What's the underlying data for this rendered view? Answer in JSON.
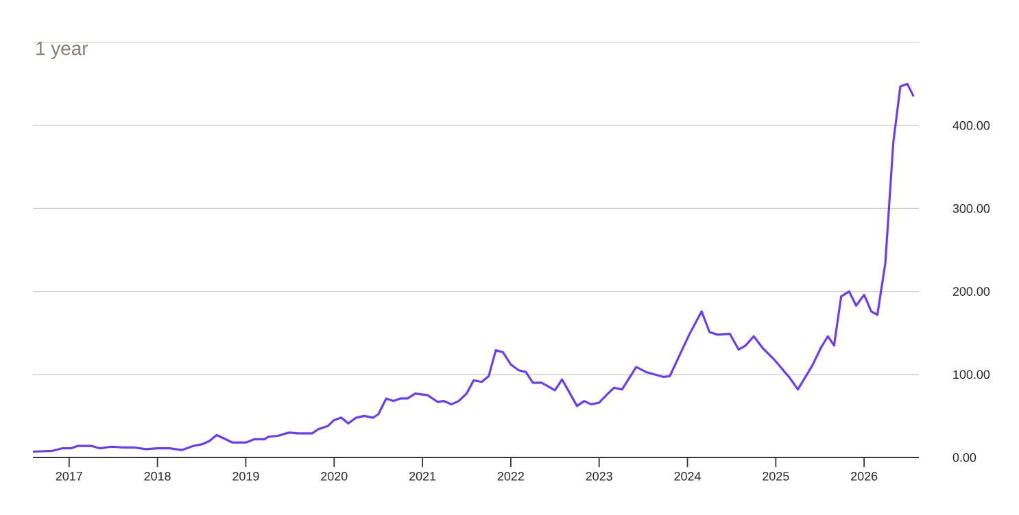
{
  "chart_data": {
    "type": "line",
    "title": "1 year",
    "grid": "y",
    "xlim": [
      2016.59,
      2026.62
    ],
    "xticks": [
      2017,
      2018,
      2019,
      2020,
      2021,
      2022,
      2023,
      2024,
      2025,
      2026
    ],
    "ylim": [
      0,
      500
    ],
    "yticks": [
      {
        "value": 0,
        "label": "0.00"
      },
      {
        "value": 100,
        "label": "100.00"
      },
      {
        "value": 200,
        "label": "200.00"
      },
      {
        "value": 300,
        "label": "300.00"
      },
      {
        "value": 400,
        "label": "400.00"
      },
      {
        "value": 500,
        "label": null
      }
    ],
    "series": [
      {
        "color": "#6b3cf5",
        "x": [
          2016.59,
          2016.81,
          2016.92,
          2017.02,
          2017.1,
          2017.25,
          2017.35,
          2017.48,
          2017.61,
          2017.74,
          2017.87,
          2018.0,
          2018.14,
          2018.28,
          2018.41,
          2018.51,
          2018.59,
          2018.67,
          2018.85,
          2019.0,
          2019.1,
          2019.21,
          2019.26,
          2019.36,
          2019.49,
          2019.59,
          2019.75,
          2019.82,
          2019.93,
          2020.0,
          2020.08,
          2020.16,
          2020.25,
          2020.34,
          2020.44,
          2020.5,
          2020.59,
          2020.67,
          2020.75,
          2020.83,
          2020.92,
          2021.06,
          2021.17,
          2021.24,
          2021.33,
          2021.41,
          2021.5,
          2021.58,
          2021.67,
          2021.75,
          2021.83,
          2021.91,
          2022.0,
          2022.09,
          2022.17,
          2022.25,
          2022.35,
          2022.5,
          2022.58,
          2022.75,
          2022.83,
          2022.91,
          2023.0,
          2023.09,
          2023.17,
          2023.26,
          2023.42,
          2023.53,
          2023.73,
          2023.8,
          2023.91,
          2024.02,
          2024.16,
          2024.25,
          2024.34,
          2024.48,
          2024.58,
          2024.66,
          2024.75,
          2024.85,
          2024.99,
          2025.15,
          2025.25,
          2025.41,
          2025.51,
          2025.59,
          2025.66,
          2025.74,
          2025.83,
          2025.91,
          2026.0,
          2026.08,
          2026.15,
          2026.24,
          2026.33,
          2026.41,
          2026.49,
          2026.56
        ],
        "values": [
          7,
          8,
          11,
          11,
          14,
          14,
          11,
          13,
          12,
          12,
          10,
          11,
          11,
          9,
          14,
          16,
          20,
          27,
          18,
          18,
          22,
          22,
          25,
          26,
          30,
          29,
          29,
          34,
          38,
          45,
          48,
          41,
          48,
          50,
          48,
          52,
          71,
          68,
          71,
          71,
          77,
          75,
          67,
          68,
          64,
          68,
          77,
          93,
          91,
          98,
          129,
          127,
          112,
          105,
          103,
          90,
          90,
          81,
          94,
          62,
          68,
          64,
          66,
          76,
          84,
          82,
          109,
          103,
          97,
          98,
          123,
          148,
          176,
          151,
          148,
          149,
          130,
          135,
          146,
          132,
          117,
          97,
          82,
          110,
          132,
          146,
          135,
          194,
          200,
          183,
          196,
          176,
          172,
          234,
          379,
          447,
          450,
          435
        ]
      }
    ]
  }
}
